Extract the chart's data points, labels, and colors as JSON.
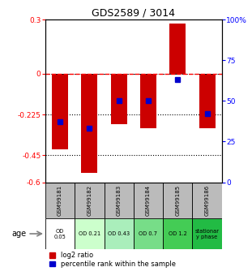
{
  "title": "GDS2589 / 3014",
  "samples": [
    "GSM99181",
    "GSM99182",
    "GSM99183",
    "GSM99184",
    "GSM99185",
    "GSM99186"
  ],
  "log2_ratio": [
    -0.42,
    -0.55,
    -0.28,
    -0.3,
    0.28,
    -0.3
  ],
  "percentile_rank": [
    37,
    33,
    50,
    50,
    63,
    42
  ],
  "ylim_left": [
    -0.6,
    0.3
  ],
  "ylim_right": [
    0,
    100
  ],
  "yticks_left": [
    -0.6,
    -0.45,
    -0.225,
    0,
    0.3
  ],
  "ytick_labels_left": [
    "-0.6",
    "-0.45",
    "-0.225",
    "0",
    "0.3"
  ],
  "yticks_right": [
    0,
    25,
    50,
    75,
    100
  ],
  "ytick_labels_right": [
    "0",
    "25",
    "50",
    "75",
    "100%"
  ],
  "bar_color": "#cc0000",
  "dot_color": "#0000cc",
  "bar_width": 0.55,
  "hline_dotted": [
    -0.225,
    -0.45
  ],
  "od_labels": [
    "OD\n0.05",
    "OD 0.21",
    "OD 0.43",
    "OD 0.7",
    "OD 1.2",
    "stationar\ny phase"
  ],
  "od_colors": [
    "#ffffff",
    "#ccffcc",
    "#aaeebb",
    "#77dd88",
    "#44cc55",
    "#22bb44"
  ],
  "age_label": "age",
  "legend_items": [
    "log2 ratio",
    "percentile rank within the sample"
  ],
  "legend_colors": [
    "#cc0000",
    "#0000cc"
  ],
  "background_color": "#ffffff",
  "table_header_color": "#bbbbbb"
}
